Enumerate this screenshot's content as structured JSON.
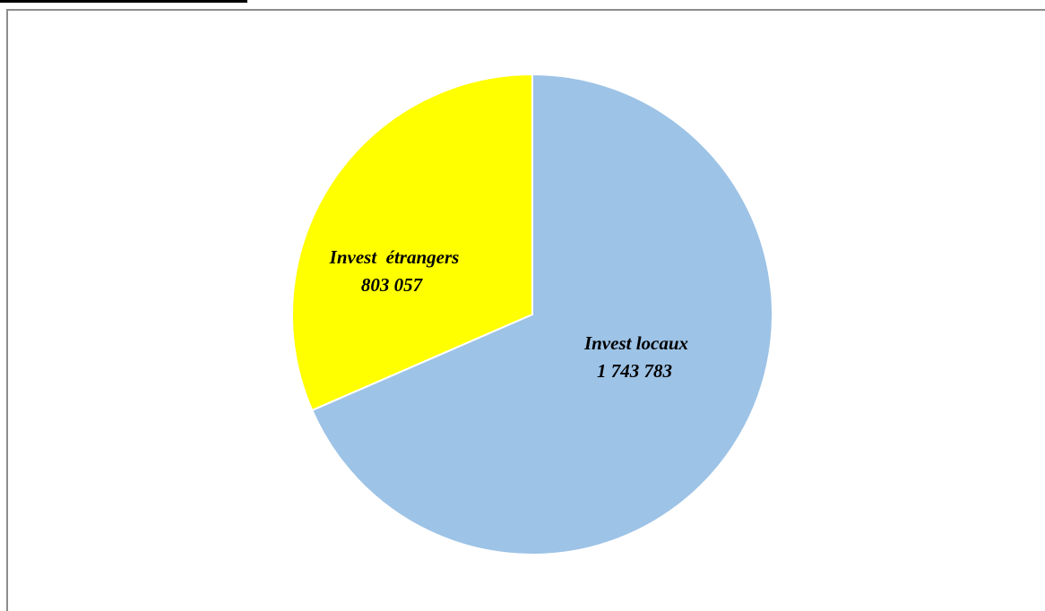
{
  "chart_data": {
    "type": "pie",
    "title": "",
    "start_angle_deg": 0,
    "direction": "clockwise",
    "slices": [
      {
        "name": "Invest locaux",
        "value": 1743783,
        "value_label": "1 743 783",
        "color": "#9DC3E6"
      },
      {
        "name": "Invest  étrangers",
        "value": 803057,
        "value_label": "803 057",
        "color": "#FFFF00"
      }
    ],
    "slice_border_color": "#FFFFFF",
    "legend": "none"
  }
}
